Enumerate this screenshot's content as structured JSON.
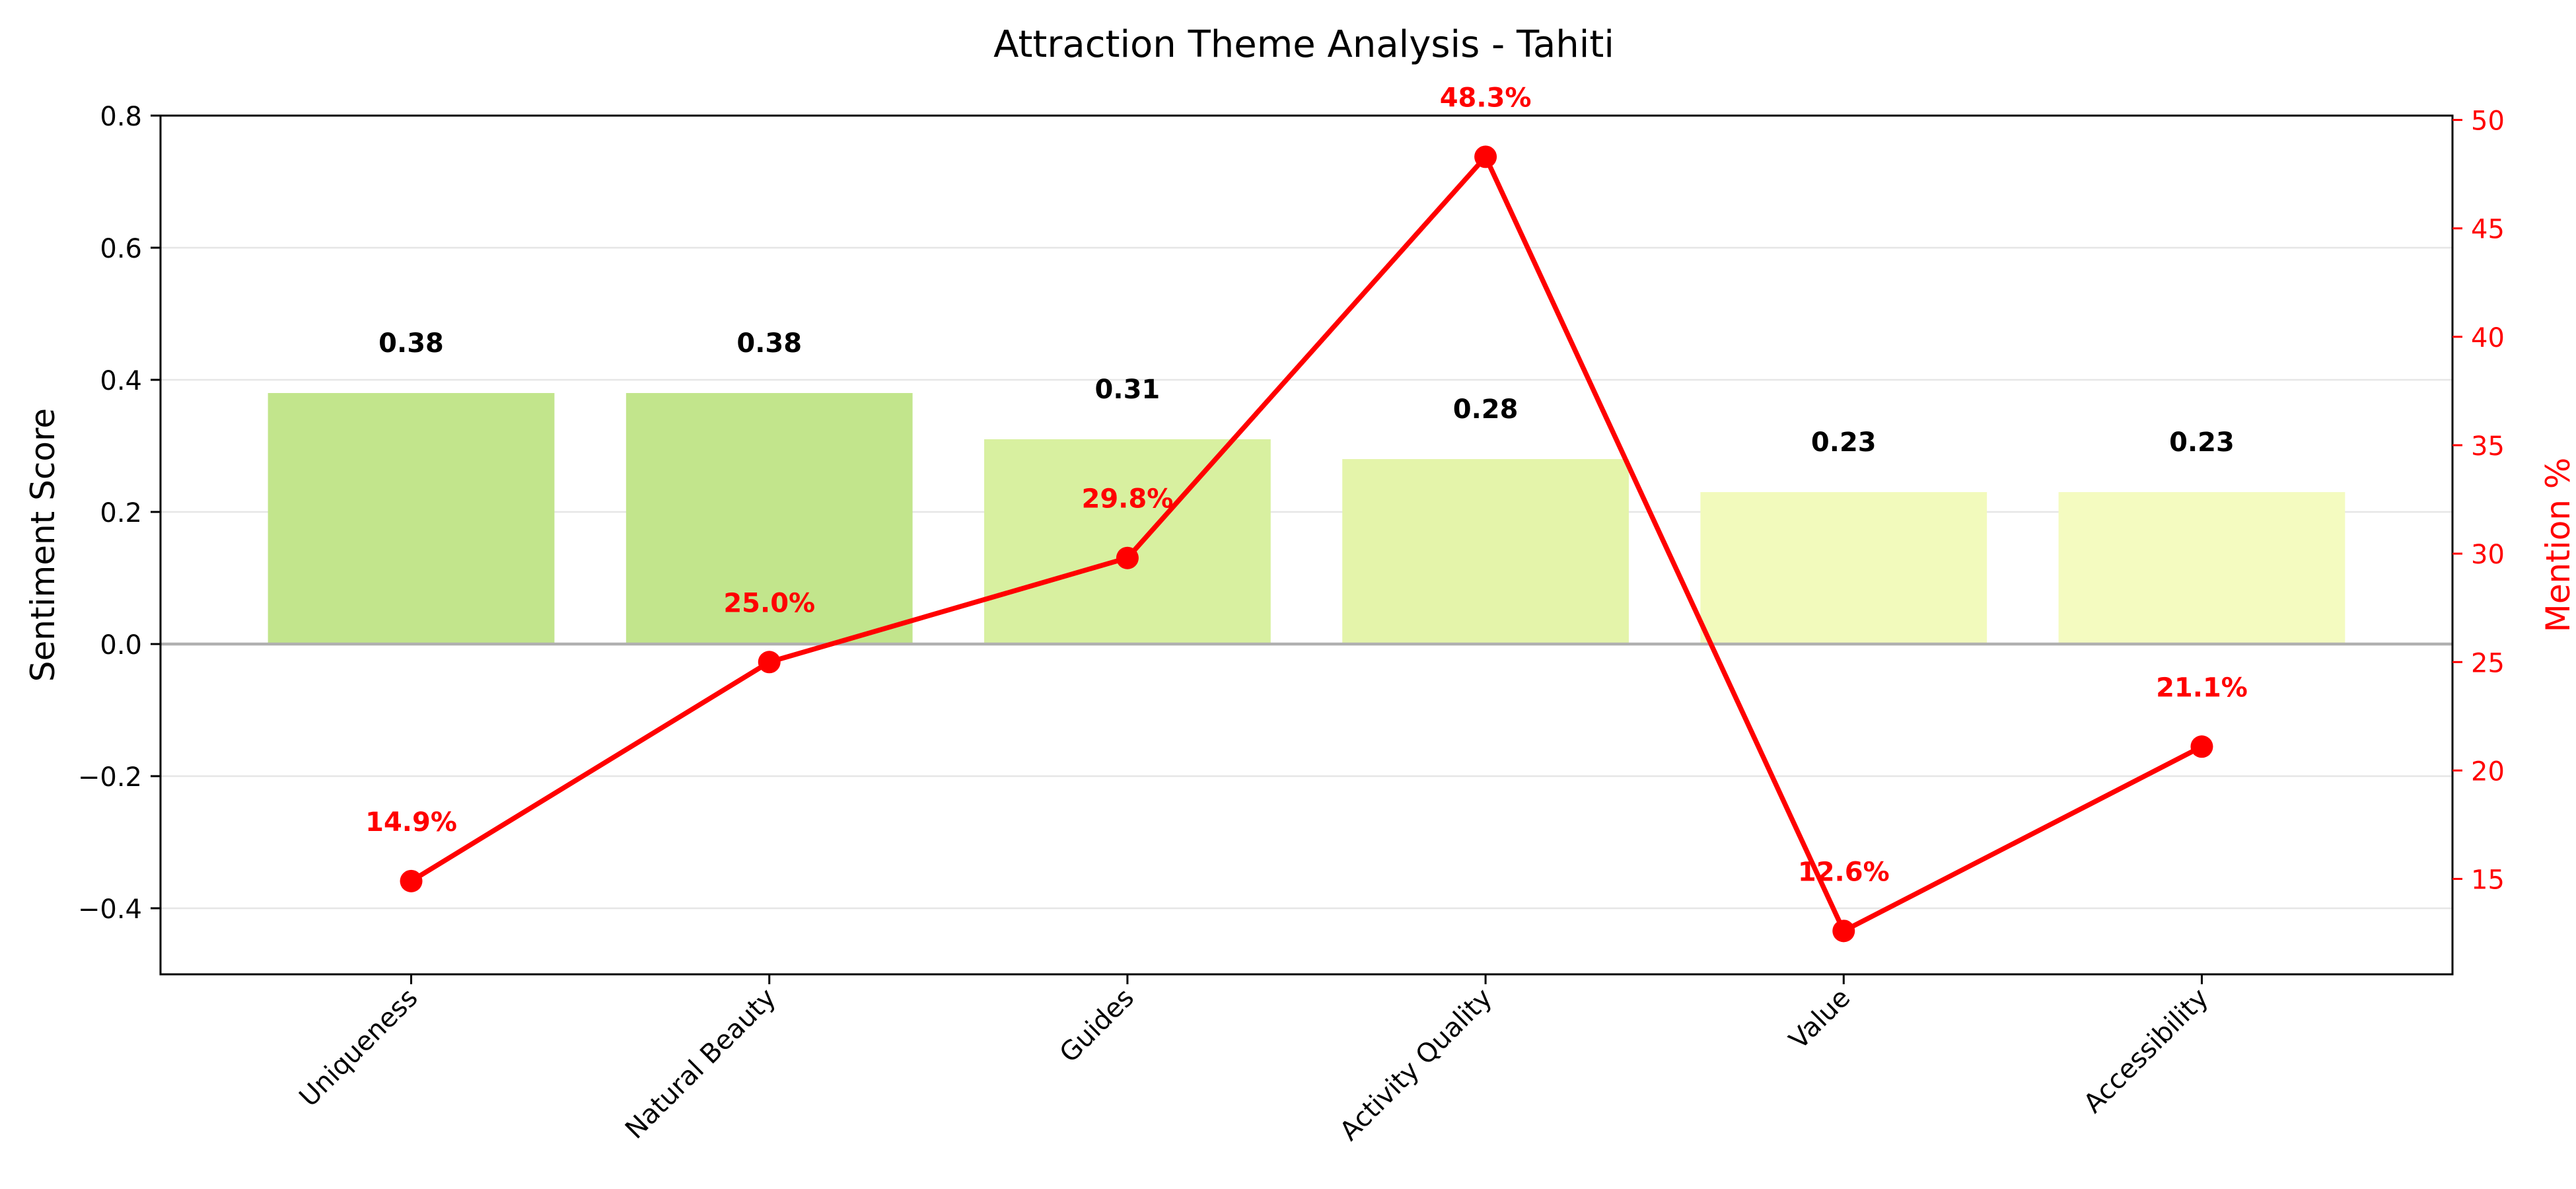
{
  "chart_data": {
    "type": "bar",
    "title": "Attraction Theme Analysis - Tahiti",
    "xlabel": "",
    "ylabel": "Sentiment Score",
    "y2label": "Mention %",
    "categories": [
      "Uniqueness",
      "Natural Beauty",
      "Guides",
      "Activity Quality",
      "Value",
      "Accessibility"
    ],
    "series": [
      {
        "type": "bar",
        "axis": "left",
        "values": [
          0.38,
          0.38,
          0.31,
          0.28,
          0.23,
          0.23
        ],
        "labels": [
          "0.38",
          "0.38",
          "0.31",
          "0.28",
          "0.23",
          "0.23"
        ],
        "colors": [
          "#c2e58c",
          "#c2e58c",
          "#d8f0a0",
          "#e4f4aa",
          "#f2fabc",
          "#f4fbc0"
        ]
      },
      {
        "type": "line",
        "axis": "right",
        "values": [
          14.9,
          25.0,
          29.8,
          48.3,
          12.6,
          21.1
        ],
        "labels": [
          "14.9%",
          "25.0%",
          "29.8%",
          "48.3%",
          "12.6%",
          "21.1%"
        ],
        "color": "#ff0000"
      }
    ],
    "ylim": [
      -0.5,
      0.8
    ],
    "yticks": [
      -0.4,
      -0.2,
      0.0,
      0.2,
      0.4,
      0.6,
      0.8
    ],
    "ytick_labels": [
      "−0.4",
      "−0.2",
      "0.0",
      "0.2",
      "0.4",
      "0.6",
      "0.8"
    ],
    "y2lim": [
      10.6,
      50.2
    ],
    "y2ticks": [
      15,
      20,
      25,
      30,
      35,
      40,
      45,
      50
    ],
    "y2tick_labels": [
      "15",
      "20",
      "25",
      "30",
      "35",
      "40",
      "45",
      "50"
    ],
    "grid": true,
    "legend": "none"
  }
}
